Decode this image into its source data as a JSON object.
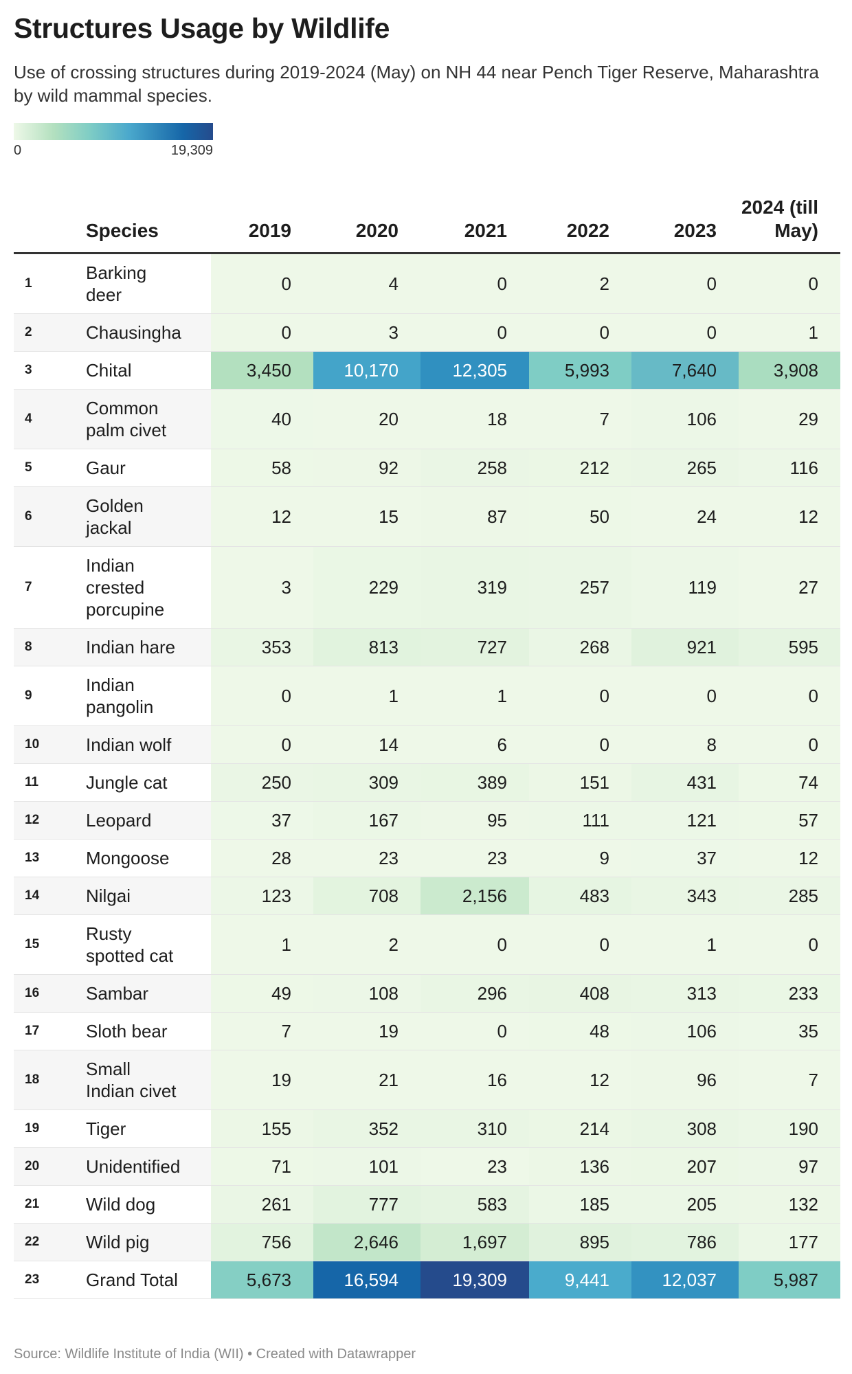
{
  "title": "Structures Usage by Wildlife",
  "subtitle": "Use of crossing structures during 2019-2024 (May) on NH 44 near Pench Tiger Reserve, Maharashtra by wild mammal species.",
  "legend": {
    "min_label": "0",
    "max_label": "19,309",
    "min": 0,
    "max": 19309
  },
  "colors": {
    "scale": [
      "#eef8e8",
      "#d3edd3",
      "#b3e0bf",
      "#7fcdc5",
      "#66b9c6",
      "#4aabcc",
      "#308fc0",
      "#1666a8",
      "#254b8c"
    ]
  },
  "source": "Source: Wildlife Institute of India (WII) • Created with Datawrapper",
  "chart_data": {
    "type": "heatmap",
    "title": "Structures Usage by Wildlife",
    "columns": [
      "Species",
      "2019",
      "2020",
      "2021",
      "2022",
      "2023",
      "2024 (till May)"
    ],
    "rows": [
      {
        "n": "1",
        "species": "Barking\ndeer",
        "values": [
          0,
          4,
          0,
          2,
          0,
          0
        ]
      },
      {
        "n": "2",
        "species": "Chausingha",
        "values": [
          0,
          3,
          0,
          0,
          0,
          1
        ]
      },
      {
        "n": "3",
        "species": "Chital",
        "values": [
          3450,
          10170,
          12305,
          5993,
          7640,
          3908
        ]
      },
      {
        "n": "4",
        "species": "Common\npalm civet",
        "values": [
          40,
          20,
          18,
          7,
          106,
          29
        ]
      },
      {
        "n": "5",
        "species": "Gaur",
        "values": [
          58,
          92,
          258,
          212,
          265,
          116
        ]
      },
      {
        "n": "6",
        "species": "Golden\njackal",
        "values": [
          12,
          15,
          87,
          50,
          24,
          12
        ]
      },
      {
        "n": "7",
        "species": "Indian\ncrested\nporcupine",
        "values": [
          3,
          229,
          319,
          257,
          119,
          27
        ]
      },
      {
        "n": "8",
        "species": "Indian hare",
        "values": [
          353,
          813,
          727,
          268,
          921,
          595
        ]
      },
      {
        "n": "9",
        "species": "Indian\npangolin",
        "values": [
          0,
          1,
          1,
          0,
          0,
          0
        ]
      },
      {
        "n": "10",
        "species": "Indian wolf",
        "values": [
          0,
          14,
          6,
          0,
          8,
          0
        ]
      },
      {
        "n": "11",
        "species": "Jungle cat",
        "values": [
          250,
          309,
          389,
          151,
          431,
          74
        ]
      },
      {
        "n": "12",
        "species": "Leopard",
        "values": [
          37,
          167,
          95,
          111,
          121,
          57
        ]
      },
      {
        "n": "13",
        "species": "Mongoose",
        "values": [
          28,
          23,
          23,
          9,
          37,
          12
        ]
      },
      {
        "n": "14",
        "species": "Nilgai",
        "values": [
          123,
          708,
          2156,
          483,
          343,
          285
        ]
      },
      {
        "n": "15",
        "species": "Rusty\nspotted cat",
        "values": [
          1,
          2,
          0,
          0,
          1,
          0
        ]
      },
      {
        "n": "16",
        "species": "Sambar",
        "values": [
          49,
          108,
          296,
          408,
          313,
          233
        ]
      },
      {
        "n": "17",
        "species": "Sloth bear",
        "values": [
          7,
          19,
          0,
          48,
          106,
          35
        ]
      },
      {
        "n": "18",
        "species": "Small\nIndian civet",
        "values": [
          19,
          21,
          16,
          12,
          96,
          7
        ]
      },
      {
        "n": "19",
        "species": "Tiger",
        "values": [
          155,
          352,
          310,
          214,
          308,
          190
        ]
      },
      {
        "n": "20",
        "species": "Unidentified",
        "values": [
          71,
          101,
          23,
          136,
          207,
          97
        ]
      },
      {
        "n": "21",
        "species": "Wild dog",
        "values": [
          261,
          777,
          583,
          185,
          205,
          132
        ]
      },
      {
        "n": "22",
        "species": "Wild pig",
        "values": [
          756,
          2646,
          1697,
          895,
          786,
          177
        ]
      },
      {
        "n": "23",
        "species": "Grand Total",
        "values": [
          5673,
          16594,
          19309,
          9441,
          12037,
          5987
        ]
      }
    ]
  }
}
